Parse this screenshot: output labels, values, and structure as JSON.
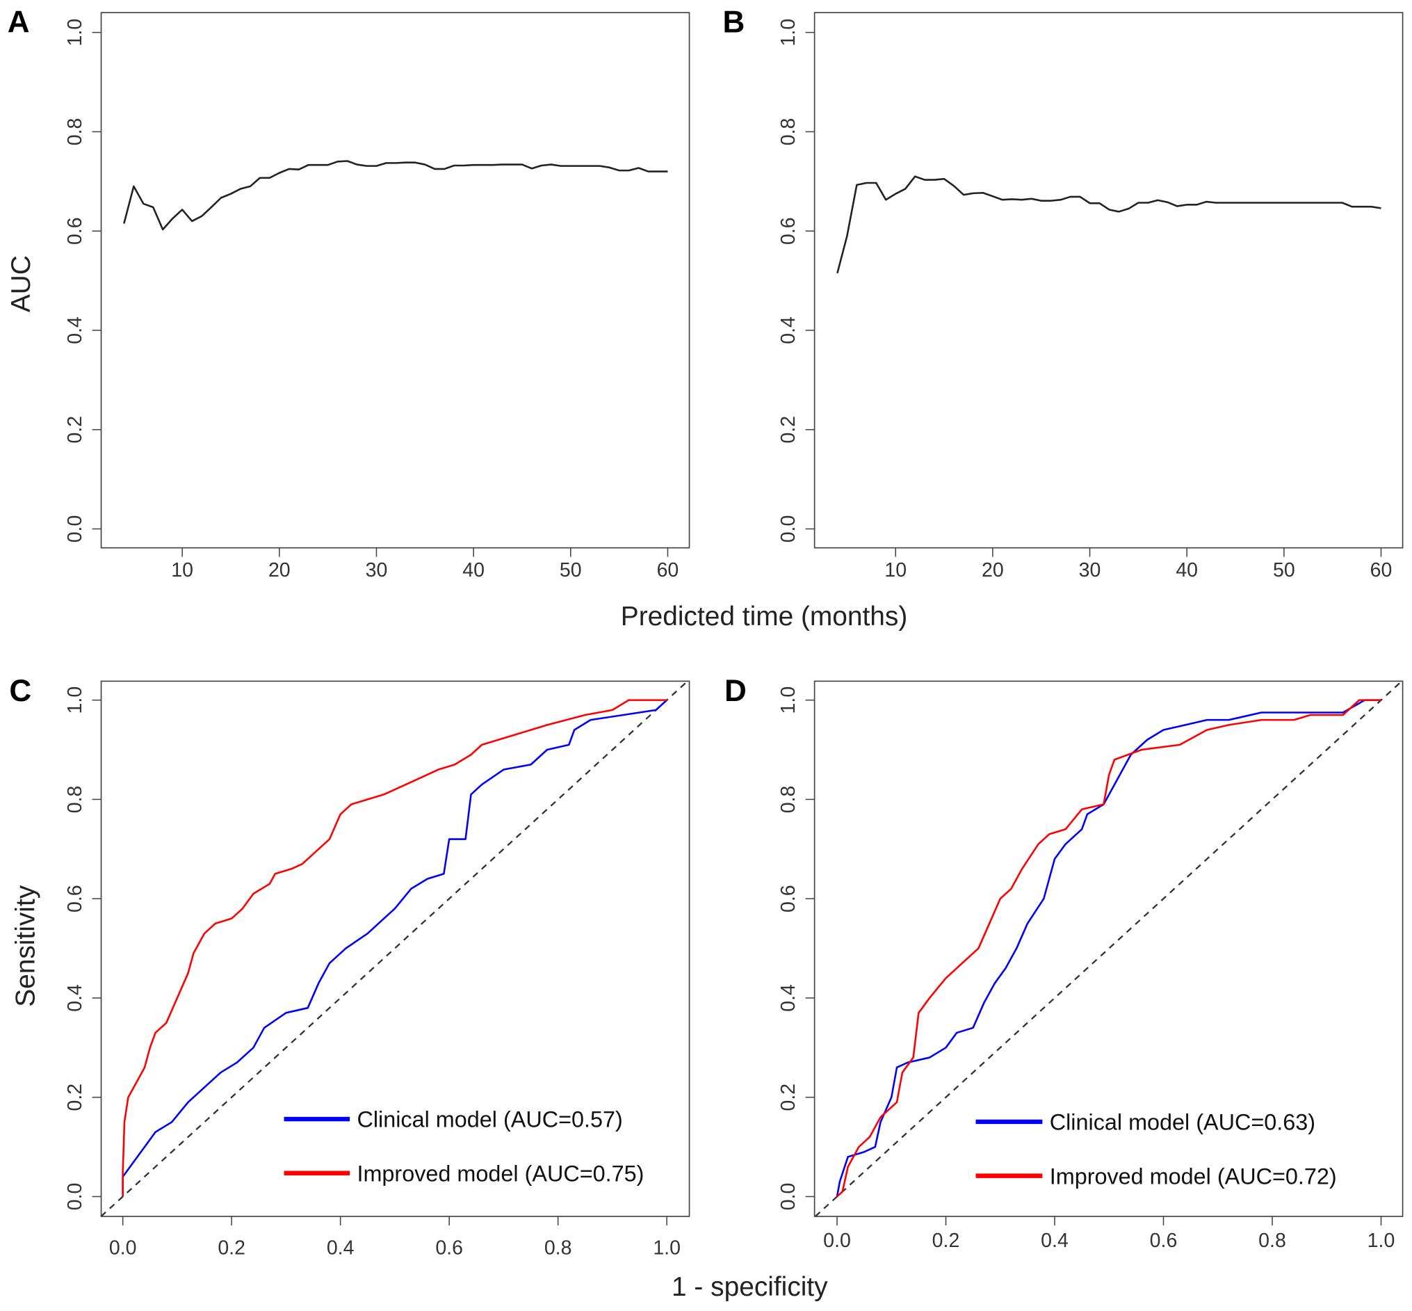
{
  "chart_data": [
    {
      "panel": "A",
      "type": "line",
      "ylabel": "AUC",
      "xlabel": "Predicted time (months)",
      "xlim": [
        4,
        60
      ],
      "ylim": [
        0,
        1
      ],
      "xticks": [
        "10",
        "20",
        "30",
        "40",
        "50",
        "60"
      ],
      "yticks": [
        "0.0",
        "0.2",
        "0.4",
        "0.6",
        "0.8",
        "1.0"
      ],
      "series": [
        {
          "name": "AUC",
          "color": "#222222",
          "x": [
            4,
            5,
            6,
            7,
            8,
            9,
            10,
            11,
            12,
            13,
            14,
            15,
            16,
            17,
            18,
            19,
            20,
            21,
            22,
            23,
            24,
            25,
            26,
            27,
            28,
            29,
            30,
            31,
            32,
            33,
            34,
            35,
            36,
            37,
            38,
            39,
            40,
            41,
            42,
            43,
            44,
            45,
            46,
            47,
            48,
            49,
            50,
            51,
            52,
            53,
            54,
            55,
            56,
            57,
            58,
            59,
            60
          ],
          "y": [
            0.615,
            0.69,
            0.655,
            0.648,
            0.603,
            0.625,
            0.643,
            0.62,
            0.63,
            0.648,
            0.667,
            0.675,
            0.685,
            0.69,
            0.707,
            0.707,
            0.717,
            0.725,
            0.724,
            0.733,
            0.733,
            0.733,
            0.74,
            0.741,
            0.734,
            0.731,
            0.731,
            0.737,
            0.737,
            0.738,
            0.738,
            0.734,
            0.725,
            0.725,
            0.732,
            0.732,
            0.733,
            0.733,
            0.733,
            0.734,
            0.734,
            0.734,
            0.726,
            0.732,
            0.734,
            0.731,
            0.731,
            0.731,
            0.731,
            0.731,
            0.728,
            0.722,
            0.722,
            0.727,
            0.72,
            0.72,
            0.72
          ]
        }
      ]
    },
    {
      "panel": "B",
      "type": "line",
      "xlim": [
        4,
        60
      ],
      "ylim": [
        0,
        1
      ],
      "xticks": [
        "10",
        "20",
        "30",
        "40",
        "50",
        "60"
      ],
      "yticks": [
        "0.0",
        "0.2",
        "0.4",
        "0.6",
        "0.8",
        "1.0"
      ],
      "series": [
        {
          "name": "AUC",
          "color": "#222222",
          "x": [
            4,
            5,
            6,
            7,
            8,
            9,
            10,
            11,
            12,
            13,
            14,
            15,
            16,
            17,
            18,
            19,
            20,
            21,
            22,
            23,
            24,
            25,
            26,
            27,
            28,
            29,
            30,
            31,
            32,
            33,
            34,
            35,
            36,
            37,
            38,
            39,
            40,
            41,
            42,
            43,
            44,
            45,
            46,
            47,
            48,
            49,
            50,
            51,
            52,
            53,
            54,
            55,
            56,
            57,
            58,
            59,
            60
          ],
          "y": [
            0.515,
            0.59,
            0.693,
            0.697,
            0.697,
            0.663,
            0.675,
            0.685,
            0.71,
            0.703,
            0.703,
            0.705,
            0.691,
            0.673,
            0.676,
            0.677,
            0.67,
            0.663,
            0.664,
            0.663,
            0.665,
            0.661,
            0.661,
            0.663,
            0.669,
            0.669,
            0.656,
            0.656,
            0.643,
            0.639,
            0.645,
            0.657,
            0.657,
            0.662,
            0.658,
            0.65,
            0.653,
            0.653,
            0.659,
            0.657,
            0.657,
            0.657,
            0.657,
            0.657,
            0.657,
            0.657,
            0.657,
            0.657,
            0.657,
            0.657,
            0.657,
            0.657,
            0.657,
            0.649,
            0.649,
            0.649,
            0.646
          ]
        }
      ]
    },
    {
      "panel": "C",
      "type": "line",
      "ylabel": "Sensitivity",
      "xlabel": "1 - specificity",
      "xlim": [
        0,
        1
      ],
      "ylim": [
        0,
        1
      ],
      "xticks": [
        "0.0",
        "0.2",
        "0.4",
        "0.6",
        "0.8",
        "1.0"
      ],
      "yticks": [
        "0.0",
        "0.2",
        "0.4",
        "0.6",
        "0.8",
        "1.0"
      ],
      "legend_position": "bottom-right",
      "series": [
        {
          "name": "Clinical model (AUC=0.57)",
          "color": "#0000ff",
          "x": [
            0,
            0,
            0.02,
            0.04,
            0.06,
            0.09,
            0.12,
            0.15,
            0.18,
            0.21,
            0.24,
            0.26,
            0.3,
            0.34,
            0.36,
            0.38,
            0.41,
            0.45,
            0.48,
            0.5,
            0.53,
            0.56,
            0.59,
            0.6,
            0.63,
            0.64,
            0.66,
            0.7,
            0.75,
            0.78,
            0.82,
            0.83,
            0.86,
            0.92,
            0.98,
            1
          ],
          "y": [
            0,
            0.04,
            0.07,
            0.1,
            0.13,
            0.15,
            0.19,
            0.22,
            0.25,
            0.27,
            0.3,
            0.34,
            0.37,
            0.38,
            0.43,
            0.47,
            0.5,
            0.53,
            0.56,
            0.58,
            0.62,
            0.64,
            0.65,
            0.72,
            0.72,
            0.81,
            0.83,
            0.86,
            0.87,
            0.9,
            0.91,
            0.94,
            0.96,
            0.97,
            0.98,
            1
          ]
        },
        {
          "name": "Improved model (AUC=0.75)",
          "color": "#ff0000",
          "x": [
            0,
            0,
            0.003,
            0.01,
            0.02,
            0.04,
            0.05,
            0.06,
            0.08,
            0.1,
            0.12,
            0.13,
            0.15,
            0.17,
            0.2,
            0.22,
            0.24,
            0.27,
            0.28,
            0.31,
            0.33,
            0.36,
            0.38,
            0.4,
            0.42,
            0.45,
            0.48,
            0.5,
            0.54,
            0.58,
            0.61,
            0.64,
            0.66,
            0.72,
            0.78,
            0.85,
            0.9,
            0.93,
            1
          ],
          "y": [
            0,
            0.05,
            0.15,
            0.2,
            0.22,
            0.26,
            0.3,
            0.33,
            0.35,
            0.4,
            0.45,
            0.49,
            0.53,
            0.55,
            0.56,
            0.58,
            0.61,
            0.63,
            0.65,
            0.66,
            0.67,
            0.7,
            0.72,
            0.77,
            0.79,
            0.8,
            0.81,
            0.82,
            0.84,
            0.86,
            0.87,
            0.89,
            0.91,
            0.93,
            0.95,
            0.97,
            0.98,
            1,
            1
          ]
        }
      ],
      "reference_line": "diagonal"
    },
    {
      "panel": "D",
      "type": "line",
      "xlim": [
        0,
        1
      ],
      "ylim": [
        0,
        1
      ],
      "xticks": [
        "0.0",
        "0.2",
        "0.4",
        "0.6",
        "0.8",
        "1.0"
      ],
      "yticks": [
        "0.0",
        "0.2",
        "0.4",
        "0.6",
        "0.8",
        "1.0"
      ],
      "legend_position": "bottom-right",
      "series": [
        {
          "name": "Clinical model (AUC=0.63)",
          "color": "#0000ff",
          "x": [
            0,
            0.005,
            0.02,
            0.05,
            0.07,
            0.08,
            0.1,
            0.11,
            0.13,
            0.17,
            0.2,
            0.22,
            0.25,
            0.27,
            0.29,
            0.31,
            0.33,
            0.35,
            0.38,
            0.4,
            0.42,
            0.45,
            0.46,
            0.49,
            0.52,
            0.54,
            0.57,
            0.6,
            0.64,
            0.68,
            0.72,
            0.78,
            0.88,
            0.93,
            0.97,
            1
          ],
          "y": [
            0,
            0.03,
            0.08,
            0.09,
            0.1,
            0.15,
            0.2,
            0.26,
            0.27,
            0.28,
            0.3,
            0.33,
            0.34,
            0.39,
            0.43,
            0.46,
            0.5,
            0.55,
            0.6,
            0.68,
            0.71,
            0.74,
            0.77,
            0.79,
            0.85,
            0.89,
            0.92,
            0.94,
            0.95,
            0.96,
            0.96,
            0.975,
            0.975,
            0.975,
            1,
            1
          ]
        },
        {
          "name": "Improved model (AUC=0.72)",
          "color": "#ff0000",
          "x": [
            0,
            0.01,
            0.02,
            0.04,
            0.06,
            0.08,
            0.11,
            0.12,
            0.14,
            0.15,
            0.17,
            0.2,
            0.23,
            0.26,
            0.28,
            0.3,
            0.32,
            0.34,
            0.37,
            0.39,
            0.42,
            0.45,
            0.49,
            0.5,
            0.51,
            0.56,
            0.63,
            0.68,
            0.72,
            0.78,
            0.84,
            0.87,
            0.93,
            0.96,
            1
          ],
          "y": [
            0,
            0.01,
            0.06,
            0.1,
            0.12,
            0.16,
            0.19,
            0.25,
            0.28,
            0.37,
            0.4,
            0.44,
            0.47,
            0.5,
            0.55,
            0.6,
            0.62,
            0.66,
            0.71,
            0.73,
            0.74,
            0.78,
            0.79,
            0.85,
            0.88,
            0.9,
            0.91,
            0.94,
            0.95,
            0.96,
            0.96,
            0.97,
            0.97,
            1,
            1
          ]
        }
      ],
      "reference_line": "diagonal"
    }
  ],
  "labels": {
    "panel_A": "A",
    "panel_B": "B",
    "panel_C": "C",
    "panel_D": "D",
    "top_ylabel": "AUC",
    "top_xlabel": "Predicted time (months)",
    "bottom_ylabel": "Sensitivity",
    "bottom_xlabel": "1 - specificity"
  }
}
